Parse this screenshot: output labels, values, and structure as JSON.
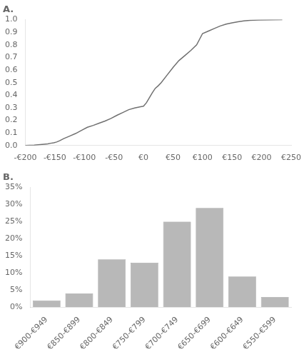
{
  "chart_data": [
    {
      "type": "line",
      "title": "A.",
      "color": "#707070",
      "grid": false,
      "x": [
        -200,
        -185,
        -175,
        -168,
        -162,
        -157,
        -152,
        -147,
        -142,
        -135,
        -125,
        -115,
        -105,
        -95,
        -85,
        -75,
        -65,
        -55,
        -45,
        -35,
        -25,
        -15,
        -5,
        0,
        5,
        10,
        15,
        20,
        25,
        30,
        40,
        50,
        60,
        70,
        80,
        90,
        100,
        110,
        120,
        130,
        140,
        150,
        160,
        170,
        180,
        195,
        215,
        235
      ],
      "values": [
        0.0,
        0.003,
        0.007,
        0.01,
        0.013,
        0.018,
        0.022,
        0.028,
        0.038,
        0.055,
        0.075,
        0.095,
        0.12,
        0.145,
        0.16,
        0.178,
        0.195,
        0.215,
        0.24,
        0.262,
        0.285,
        0.298,
        0.308,
        0.312,
        0.34,
        0.38,
        0.42,
        0.455,
        0.475,
        0.5,
        0.56,
        0.62,
        0.675,
        0.715,
        0.755,
        0.8,
        0.89,
        0.91,
        0.93,
        0.95,
        0.965,
        0.975,
        0.984,
        0.99,
        0.995,
        0.998,
        0.999,
        1.0
      ],
      "xlim": [
        -200,
        250
      ],
      "xticks": [
        {
          "value": -200,
          "label": "-€200"
        },
        {
          "value": -150,
          "label": "-€150"
        },
        {
          "value": -100,
          "label": "-€100"
        },
        {
          "value": -50,
          "label": "-€50"
        },
        {
          "value": 0,
          "label": "€0"
        },
        {
          "value": 50,
          "label": "€50"
        },
        {
          "value": 100,
          "label": "€100"
        },
        {
          "value": 150,
          "label": "€150"
        },
        {
          "value": 200,
          "label": "€200"
        },
        {
          "value": 250,
          "label": "€250"
        }
      ],
      "ylim": [
        0.0,
        1.0
      ],
      "yticks": [
        {
          "value": 0.0,
          "label": "0.0"
        },
        {
          "value": 0.1,
          "label": "0.1"
        },
        {
          "value": 0.2,
          "label": "0.2"
        },
        {
          "value": 0.3,
          "label": "0.3"
        },
        {
          "value": 0.4,
          "label": "0.4"
        },
        {
          "value": 0.5,
          "label": "0.5"
        },
        {
          "value": 0.6,
          "label": "0.6"
        },
        {
          "value": 0.7,
          "label": "0.7"
        },
        {
          "value": 0.8,
          "label": "0.8"
        },
        {
          "value": 0.9,
          "label": "0.9"
        },
        {
          "value": 1.0,
          "label": "1.0"
        }
      ]
    },
    {
      "type": "bar",
      "title": "B.",
      "color": "#b8b8b8",
      "grid": false,
      "categories": [
        "€900-€949",
        "€850-€899",
        "€800-€849",
        "€750-€799",
        "€700-€749",
        "€650-€699",
        "€600-€649",
        "€550-€599"
      ],
      "values": [
        2,
        4,
        14,
        13,
        25,
        29,
        9,
        3
      ],
      "ylim": [
        0,
        35
      ],
      "yticks": [
        {
          "value": 0,
          "label": "0%"
        },
        {
          "value": 5,
          "label": "5%"
        },
        {
          "value": 10,
          "label": "10%"
        },
        {
          "value": 15,
          "label": "15%"
        },
        {
          "value": 20,
          "label": "20%"
        },
        {
          "value": 25,
          "label": "25%"
        },
        {
          "value": 30,
          "label": "30%"
        },
        {
          "value": 35,
          "label": "35%"
        }
      ]
    }
  ]
}
